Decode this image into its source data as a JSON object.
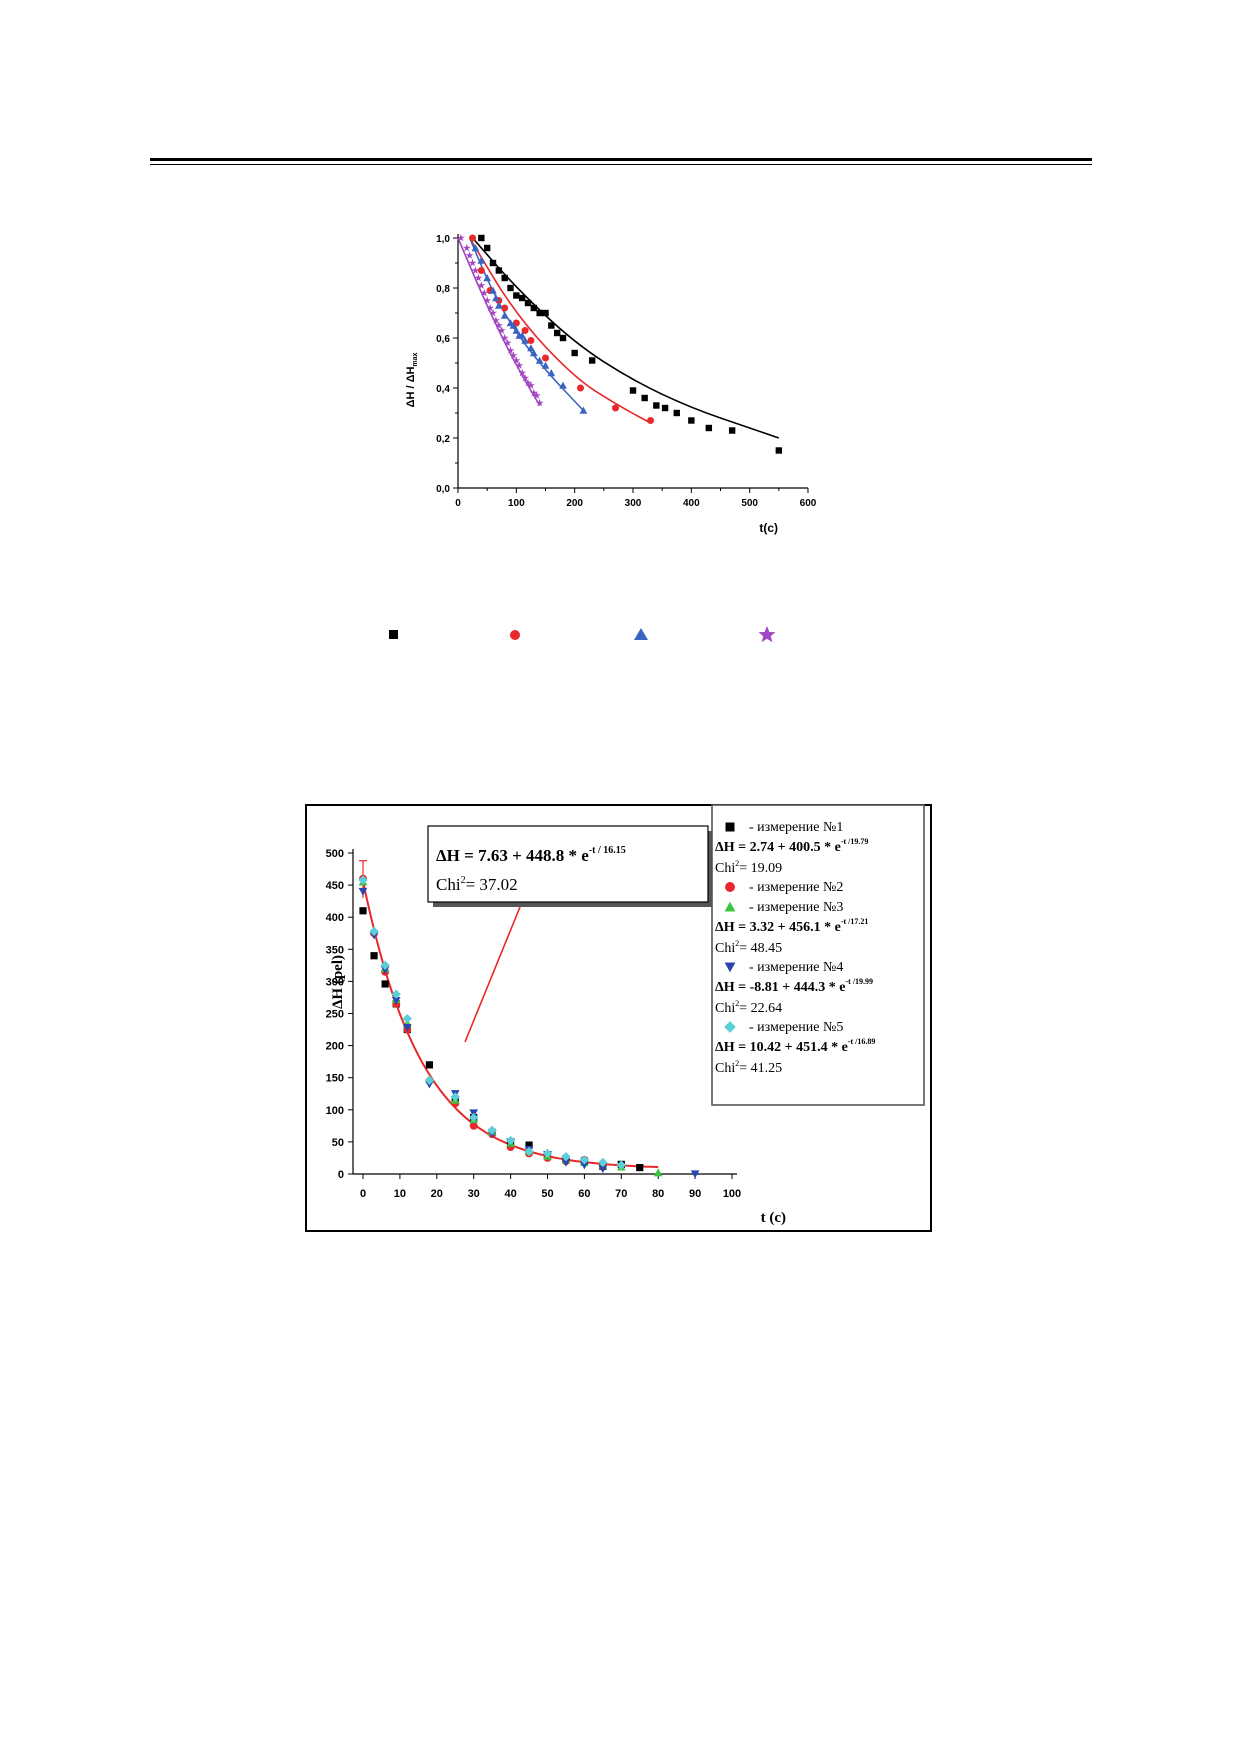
{
  "chart_data": [
    {
      "type": "scatter",
      "ylabel": "ΔH / ΔH",
      "ylabel_sub": "max",
      "xlabel": "t(c)",
      "xlim": [
        0,
        600
      ],
      "ylim": [
        0,
        1.0
      ],
      "xticks": [
        "0",
        "100",
        "200",
        "300",
        "400",
        "500",
        "600"
      ],
      "yticks": [
        "0,0",
        "0,2",
        "0,4",
        "0,6",
        "0,8",
        "1,0"
      ],
      "series": [
        {
          "marker": "square",
          "color": "#000000",
          "x": [
            40,
            50,
            60,
            70,
            80,
            90,
            100,
            110,
            120,
            130,
            140,
            150,
            160,
            170,
            180,
            200,
            230,
            300,
            320,
            340,
            355,
            375,
            400,
            430,
            470,
            550
          ],
          "y": [
            1.0,
            0.96,
            0.9,
            0.87,
            0.84,
            0.8,
            0.77,
            0.76,
            0.74,
            0.72,
            0.7,
            0.7,
            0.65,
            0.62,
            0.6,
            0.54,
            0.51,
            0.39,
            0.36,
            0.33,
            0.32,
            0.3,
            0.27,
            0.24,
            0.23,
            0.15
          ],
          "fit": [
            [
              25,
              1.0
            ],
            [
              100,
              0.8
            ],
            [
              200,
              0.58
            ],
            [
              300,
              0.43
            ],
            [
              400,
              0.32
            ],
            [
              500,
              0.24
            ],
            [
              550,
              0.2
            ]
          ]
        },
        {
          "marker": "circle",
          "color": "#e8282a",
          "x": [
            25,
            40,
            55,
            70,
            80,
            100,
            115,
            125,
            150,
            210,
            270,
            330
          ],
          "y": [
            1.0,
            0.87,
            0.79,
            0.75,
            0.72,
            0.66,
            0.63,
            0.59,
            0.52,
            0.4,
            0.32,
            0.27
          ],
          "fit": [
            [
              20,
              1.0
            ],
            [
              100,
              0.69
            ],
            [
              200,
              0.44
            ],
            [
              275,
              0.33
            ],
            [
              330,
              0.26
            ]
          ]
        },
        {
          "marker": "triangle",
          "color": "#3a63c2",
          "x": [
            30,
            40,
            50,
            60,
            65,
            70,
            80,
            90,
            95,
            100,
            105,
            110,
            115,
            125,
            130,
            140,
            150,
            160,
            180,
            215
          ],
          "y": [
            0.96,
            0.91,
            0.84,
            0.79,
            0.76,
            0.73,
            0.69,
            0.66,
            0.65,
            0.63,
            0.61,
            0.61,
            0.59,
            0.56,
            0.54,
            0.51,
            0.49,
            0.46,
            0.41,
            0.31
          ],
          "fit": [
            [
              20,
              1.0
            ],
            [
              60,
              0.78
            ],
            [
              100,
              0.62
            ],
            [
              150,
              0.47
            ],
            [
              215,
              0.31
            ]
          ]
        },
        {
          "marker": "star",
          "color": "#a346c2",
          "x": [
            5,
            15,
            20,
            25,
            30,
            35,
            40,
            45,
            50,
            55,
            60,
            65,
            70,
            75,
            80,
            85,
            90,
            95,
            100,
            105,
            110,
            115,
            120,
            125,
            130,
            135,
            140
          ],
          "y": [
            1.0,
            0.96,
            0.93,
            0.9,
            0.87,
            0.84,
            0.81,
            0.78,
            0.75,
            0.72,
            0.7,
            0.67,
            0.65,
            0.63,
            0.6,
            0.58,
            0.55,
            0.53,
            0.51,
            0.49,
            0.46,
            0.44,
            0.42,
            0.41,
            0.38,
            0.37,
            0.34
          ],
          "fit": [
            [
              0,
              1.0
            ],
            [
              40,
              0.78
            ],
            [
              80,
              0.58
            ],
            [
              110,
              0.45
            ],
            [
              140,
              0.33
            ]
          ]
        }
      ]
    },
    {
      "type": "scatter",
      "ylabel": "ΔH (pel)",
      "xlabel": "t (c)",
      "xlim": [
        0,
        100
      ],
      "ylim": [
        0,
        500
      ],
      "xticks": [
        "0",
        "10",
        "20",
        "30",
        "40",
        "50",
        "60",
        "70",
        "80",
        "90",
        "100"
      ],
      "yticks": [
        "0",
        "50",
        "100",
        "150",
        "200",
        "250",
        "300",
        "350",
        "400",
        "450",
        "500"
      ],
      "fit_box": {
        "eq_prefix": "ΔH = 7.63 + 448.8 * e",
        "eq_exp": "-t / 16.15",
        "chi_label": "Chi",
        "chi_value": "= 37.02"
      },
      "fit_curve": {
        "a": 7.63,
        "b": 448.8,
        "tau": 16.15,
        "color": "#e8282a"
      },
      "series": [
        {
          "name": "- измерение №1",
          "marker": "square",
          "color": "#000000",
          "x": [
            0,
            3,
            6,
            9,
            12,
            18,
            25,
            30,
            35,
            40,
            45,
            50,
            55,
            60,
            65,
            70,
            75
          ],
          "y": [
            410,
            340,
            296,
            265,
            225,
            170,
            115,
            88,
            65,
            48,
            45,
            30,
            22,
            20,
            12,
            15,
            10
          ],
          "eq_prefix": "ΔH = 2.74 + 400.5 * e",
          "eq_exp": "-t /19.79",
          "chi_label": "Chi",
          "chi_value": "= 19.09"
        },
        {
          "name": "- измерение №2",
          "marker": "circle",
          "color": "#e8282a",
          "x": [
            0,
            3,
            6,
            9,
            12,
            18,
            25,
            30,
            35,
            40,
            45,
            50,
            55,
            60,
            65
          ],
          "y": [
            460,
            375,
            315,
            265,
            225,
            145,
            110,
            75,
            62,
            42,
            32,
            25,
            20,
            22,
            12
          ],
          "eq_prefix": "ΔH = 3.32 + 456.1 * e",
          "eq_exp": "-t /17.21",
          "chi_label": "Chi",
          "chi_value": "= 48.45"
        },
        {
          "name": "- измерение №3",
          "marker": "triangle",
          "color": "#3cc43c",
          "x": [
            0,
            3,
            6,
            9,
            12,
            18,
            25,
            30,
            35,
            40,
            45,
            50,
            55,
            60,
            65,
            70,
            80
          ],
          "y": [
            455,
            380,
            320,
            272,
            235,
            148,
            115,
            85,
            66,
            48,
            36,
            28,
            22,
            18,
            14,
            11,
            2
          ],
          "eq_prefix": "ΔH = 3.32 + 456.1 * e",
          "eq_exp": "-t /17.21",
          "chi_label": "Chi",
          "chi_value": "= 48.45"
        },
        {
          "name": "- измерение №4",
          "marker": "triangle-down",
          "color": "#2a44b0",
          "x": [
            0,
            3,
            6,
            9,
            12,
            18,
            25,
            30,
            35,
            40,
            45,
            50,
            55,
            60,
            65,
            90
          ],
          "y": [
            440,
            372,
            318,
            270,
            228,
            140,
            125,
            95,
            63,
            50,
            38,
            30,
            18,
            14,
            8,
            0
          ],
          "eq_prefix": "ΔH = -8.81 + 444.3 * e",
          "eq_exp": "-t /19.99",
          "chi_label": "Chi",
          "chi_value": "= 22.64"
        },
        {
          "name": "- измерение №5",
          "marker": "diamond",
          "color": "#5bcfd8",
          "x": [
            0,
            3,
            6,
            9,
            12,
            18,
            25,
            30,
            35,
            40,
            45,
            50,
            55,
            60,
            65,
            70
          ],
          "y": [
            458,
            378,
            325,
            280,
            242,
            146,
            120,
            88,
            68,
            52,
            35,
            32,
            27,
            22,
            18,
            14
          ],
          "eq_prefix": "ΔH = 10.42 + 451.4 * e",
          "eq_exp": "-t /16.89",
          "chi_label": "Chi",
          "chi_value": "= 41.25"
        }
      ]
    }
  ]
}
